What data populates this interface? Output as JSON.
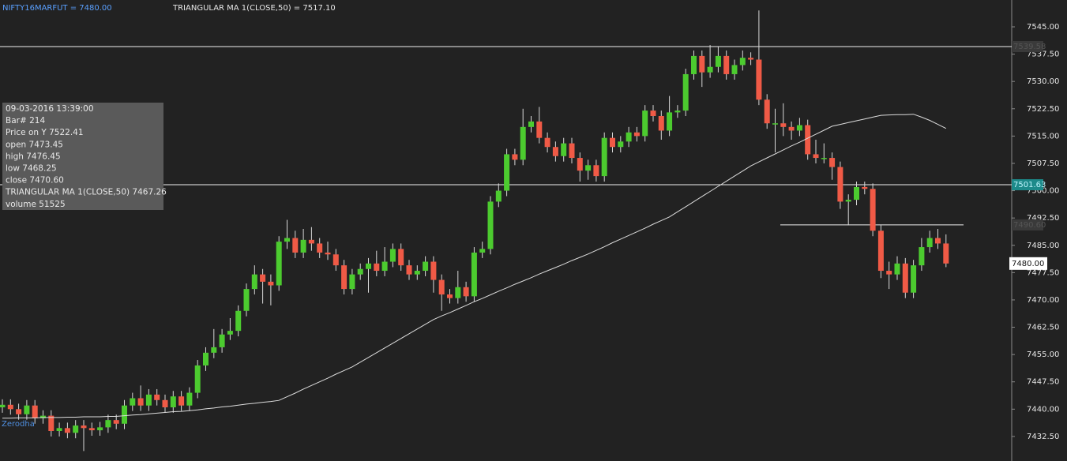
{
  "chart_data": {
    "type": "candlestick",
    "symbol_label": "NIFTY16MARFUT = 7480.00",
    "indicator_label": "TRIANGULAR MA 1(CLOSE,50) = 7517.10",
    "watermark": "Zerodha",
    "up_color": "#4ccb2f",
    "down_color": "#f05a46",
    "ma_color": "#dcdcdc",
    "ylim": [
      7425.76,
      7552.37
    ],
    "yticks": [
      {
        "value": 7432.5,
        "label": "7432.50"
      },
      {
        "value": 7440,
        "label": "7440.00"
      },
      {
        "value": 7447.5,
        "label": "7447.50"
      },
      {
        "value": 7455,
        "label": "7455.00"
      },
      {
        "value": 7462.5,
        "label": "7462.50"
      },
      {
        "value": 7470,
        "label": "7470.00"
      },
      {
        "value": 7477.5,
        "label": "7477.50"
      },
      {
        "value": 7485,
        "label": "7485.00"
      },
      {
        "value": 7492.5,
        "label": "7492.50"
      },
      {
        "value": 7500,
        "label": "7500.00"
      },
      {
        "value": 7507.5,
        "label": "7507.50"
      },
      {
        "value": 7515,
        "label": "7515.00"
      },
      {
        "value": 7522.5,
        "label": "7522.50"
      },
      {
        "value": 7530,
        "label": "7530.00"
      },
      {
        "value": 7537.5,
        "label": "7537.50"
      },
      {
        "value": 7545,
        "label": "7545.00"
      }
    ],
    "hlines": [
      {
        "value": 7539.58,
        "label": "7539.58"
      },
      {
        "value": 7501.63,
        "label": "7501.63"
      },
      {
        "value": 7490.6,
        "label": "7490.60"
      }
    ],
    "last_price": {
      "value": 7480,
      "label": "7480.00"
    },
    "tooltip": [
      "09-03-2016 13:39:00",
      "Bar# 214",
      "Price on Y  7522.41",
      "open  7473.45",
      "high  7476.45",
      "low  7468.25",
      "close  7470.60",
      "TRIANGULAR MA 1(CLOSE,50)  7467.26",
      "volume 51525"
    ],
    "open": [
      7440.5,
      7441.2,
      7440.0,
      7438.6,
      7441.0,
      7437.5,
      7438.2,
      7434.0,
      7434.8,
      7433.5,
      7435.5,
      7434.8,
      7434.2,
      7435.0,
      7437.0,
      7436.0,
      7441.0,
      7443.0,
      7441.0,
      7444.0,
      7442.5,
      7440.5,
      7443.5,
      7441.0,
      7444.5,
      7452.0,
      7455.5,
      7457.0,
      7460.5,
      7461.5,
      7467.0,
      7473.0,
      7477.0,
      7475.0,
      7474.0,
      7486.0,
      7487.0,
      7483.0,
      7486.5,
      7485.5,
      7483.0,
      7482.5,
      7479.5,
      7473.0,
      7477.0,
      7478.5,
      7480.0,
      7478.0,
      7480.5,
      7484.0,
      7479.5,
      7477.0,
      7478.0,
      7480.5,
      7475.5,
      7471.5,
      7470.5,
      7473.5,
      7471.0,
      7483.0,
      7484.0,
      7497.0,
      7500.0,
      7510.0,
      7508.5,
      7517.5,
      7519.0,
      7514.5,
      7512.0,
      7509.5,
      7513.0,
      7509.0,
      7505.5,
      7507.0,
      7504.0,
      7514.5,
      7512.0,
      7513.5,
      7516.0,
      7515.0,
      7522.0,
      7520.5,
      7516.5,
      7521.5,
      7522.0,
      7532.0,
      7537.0,
      7532.5,
      7534.0,
      7537.0,
      7532.0,
      7534.5,
      7536.5,
      7536.0,
      7525.0,
      7518.5,
      7518.5,
      7517.5,
      7516.5,
      7518.0,
      7510.0,
      7509.0,
      7509.0,
      7506.5,
      7497.0,
      7497.5,
      7501.0,
      7500.5,
      7489.0,
      7478.0,
      7477.0,
      7480.0,
      7472.0,
      7479.5,
      7484.5,
      7487.0,
      7485.5
    ],
    "high": [
      7442.7,
      7442.7,
      7441.5,
      7442.5,
      7442.5,
      7439.7,
      7439.7,
      7436.3,
      7436.3,
      7437.0,
      7437.0,
      7436.3,
      7436.5,
      7438.5,
      7438.5,
      7442.5,
      7444.5,
      7446.5,
      7445.5,
      7445.5,
      7444.0,
      7445.0,
      7445.0,
      7446.0,
      7453.5,
      7457.0,
      7462.0,
      7462.0,
      7465.0,
      7468.5,
      7474.5,
      7479.5,
      7478.5,
      7477.0,
      7487.5,
      7492.0,
      7489.0,
      7489.5,
      7490.0,
      7487.0,
      7486.0,
      7484.0,
      7481.0,
      7478.5,
      7480.0,
      7481.5,
      7483.5,
      7484.5,
      7485.5,
      7485.5,
      7481.0,
      7479.5,
      7482.0,
      7482.0,
      7477.0,
      7473.0,
      7478.0,
      7475.0,
      7484.5,
      7486.0,
      7498.5,
      7502.0,
      7511.5,
      7511.5,
      7522.5,
      7520.5,
      7523.0,
      7516.0,
      7513.5,
      7514.5,
      7514.5,
      7510.5,
      7508.5,
      7508.5,
      7516.0,
      7516.0,
      7515.0,
      7517.5,
      7517.5,
      7523.5,
      7523.5,
      7522.0,
      7526.0,
      7523.5,
      7533.5,
      7538.5,
      7538.5,
      7540.0,
      7539.5,
      7538.5,
      7536.0,
      7538.5,
      7538.0,
      7549.5,
      7526.5,
      7522.5,
      7524.0,
      7519.0,
      7520.0,
      7519.5,
      7514.0,
      7513.0,
      7510.5,
      7508.0,
      7499.0,
      7502.5,
      7502.5,
      7502.0,
      7490.5,
      7480.5,
      7482.0,
      7481.5,
      7481.0,
      7487.0,
      7489.0,
      7489.5,
      7488.0
    ],
    "low": [
      7439.0,
      7438.5,
      7437.1,
      7437.1,
      7436.0,
      7436.0,
      7432.5,
      7432.5,
      7432.0,
      7432.0,
      7428.5,
      7432.7,
      7432.7,
      7433.5,
      7434.5,
      7434.5,
      7439.5,
      7439.5,
      7439.5,
      7441.0,
      7439.0,
      7439.0,
      7439.5,
      7439.5,
      7443.0,
      7450.5,
      7454.0,
      7455.5,
      7459.0,
      7460.0,
      7465.5,
      7471.5,
      7469.0,
      7468.5,
      7472.5,
      7484.0,
      7481.5,
      7481.5,
      7483.5,
      7481.5,
      7481.0,
      7478.0,
      7471.5,
      7471.5,
      7475.5,
      7472.0,
      7476.5,
      7476.5,
      7479.0,
      7478.0,
      7475.5,
      7475.5,
      7476.5,
      7472.0,
      7467.0,
      7469.0,
      7469.0,
      7469.5,
      7469.5,
      7481.5,
      7482.5,
      7495.5,
      7498.5,
      7507.0,
      7507.0,
      7516.0,
      7513.0,
      7510.5,
      7508.0,
      7508.0,
      7507.5,
      7502.5,
      7503.0,
      7502.5,
      7502.5,
      7510.5,
      7510.5,
      7512.0,
      7513.5,
      7513.5,
      7519.0,
      7514.0,
      7515.0,
      7520.0,
      7520.5,
      7530.5,
      7528.5,
      7531.0,
      7532.5,
      7530.5,
      7530.5,
      7533.0,
      7534.5,
      7523.5,
      7517.0,
      7510.5,
      7515.0,
      7514.0,
      7515.0,
      7508.5,
      7507.5,
      7507.5,
      7503.0,
      7495.0,
      7490.5,
      7496.0,
      7499.0,
      7487.5,
      7476.0,
      7473.0,
      7475.5,
      7470.5,
      7470.5,
      7478.0,
      7483.0,
      7484.0,
      7479.0
    ],
    "close": [
      7441.2,
      7440.0,
      7438.6,
      7441.0,
      7437.5,
      7438.2,
      7434.0,
      7434.8,
      7433.5,
      7435.5,
      7434.8,
      7434.2,
      7435.0,
      7437.0,
      7436.0,
      7441.0,
      7443.0,
      7441.0,
      7444.0,
      7442.5,
      7440.5,
      7443.5,
      7441.0,
      7444.5,
      7452.0,
      7455.5,
      7457.0,
      7460.5,
      7461.5,
      7467.0,
      7473.0,
      7477.0,
      7475.0,
      7474.0,
      7486.0,
      7487.0,
      7483.0,
      7486.5,
      7485.5,
      7483.0,
      7482.5,
      7479.5,
      7473.0,
      7477.0,
      7478.5,
      7480.0,
      7478.0,
      7480.5,
      7484.0,
      7479.5,
      7477.0,
      7478.0,
      7480.5,
      7475.5,
      7471.5,
      7470.5,
      7473.5,
      7471.0,
      7483.0,
      7484.0,
      7497.0,
      7500.0,
      7510.0,
      7508.5,
      7517.5,
      7519.0,
      7514.5,
      7512.0,
      7509.5,
      7513.0,
      7509.0,
      7505.5,
      7507.0,
      7504.0,
      7514.5,
      7512.0,
      7513.5,
      7516.0,
      7515.0,
      7522.0,
      7520.5,
      7516.5,
      7521.5,
      7522.0,
      7532.0,
      7537.0,
      7532.5,
      7534.0,
      7537.0,
      7532.0,
      7534.5,
      7536.5,
      7536.0,
      7525.0,
      7518.5,
      7518.5,
      7517.5,
      7516.5,
      7518.0,
      7510.0,
      7509.0,
      7509.0,
      7506.5,
      7497.0,
      7497.5,
      7501.0,
      7500.5,
      7489.0,
      7478.0,
      7477.0,
      7480.0,
      7472.0,
      7479.5,
      7484.5,
      7487.0,
      7485.5,
      7480.0
    ],
    "ma_values": [
      7437.5,
      7437.5,
      7437.6,
      7437.6,
      7437.6,
      7437.7,
      7437.7,
      7437.7,
      7437.8,
      7437.8,
      7437.9,
      7437.9,
      7437.9,
      7438.0,
      7438.0,
      7438.2,
      7438.4,
      7438.5,
      7438.7,
      7438.9,
      7439.1,
      7439.3,
      7439.4,
      7439.6,
      7439.8,
      7440.1,
      7440.3,
      7440.6,
      7440.8,
      7441.1,
      7441.4,
      7441.6,
      7441.9,
      7442.1,
      7442.4,
      7443.4,
      7444.4,
      7445.5,
      7446.5,
      7447.5,
      7448.5,
      7449.6,
      7450.6,
      7451.6,
      7452.9,
      7454.2,
      7455.5,
      7456.8,
      7458.1,
      7459.4,
      7460.7,
      7462.0,
      7463.3,
      7464.6,
      7465.6,
      7466.5,
      7467.5,
      7468.5,
      7469.5,
      7470.4,
      7471.4,
      7472.4,
      7473.3,
      7474.3,
      7475.2,
      7476.1,
      7477.1,
      7478.0,
      7478.9,
      7479.8,
      7480.8,
      7481.7,
      7482.6,
      7483.6,
      7484.6,
      7485.7,
      7486.7,
      7487.7,
      7488.7,
      7489.7,
      7490.8,
      7491.8,
      7492.8,
      7494.2,
      7495.6,
      7497.0,
      7498.4,
      7499.8,
      7501.2,
      7502.6,
      7504.0,
      7505.4,
      7506.8,
      7507.9,
      7509.0,
      7510.1,
      7511.2,
      7512.3,
      7513.3,
      7514.4,
      7515.5,
      7516.6,
      7517.7,
      7518.2,
      7518.7,
      7519.2,
      7519.7,
      7520.2,
      7520.7,
      7520.8,
      7520.9,
      7520.9,
      7521.0,
      7520.2,
      7519.3,
      7518.2,
      7517.1
    ]
  }
}
